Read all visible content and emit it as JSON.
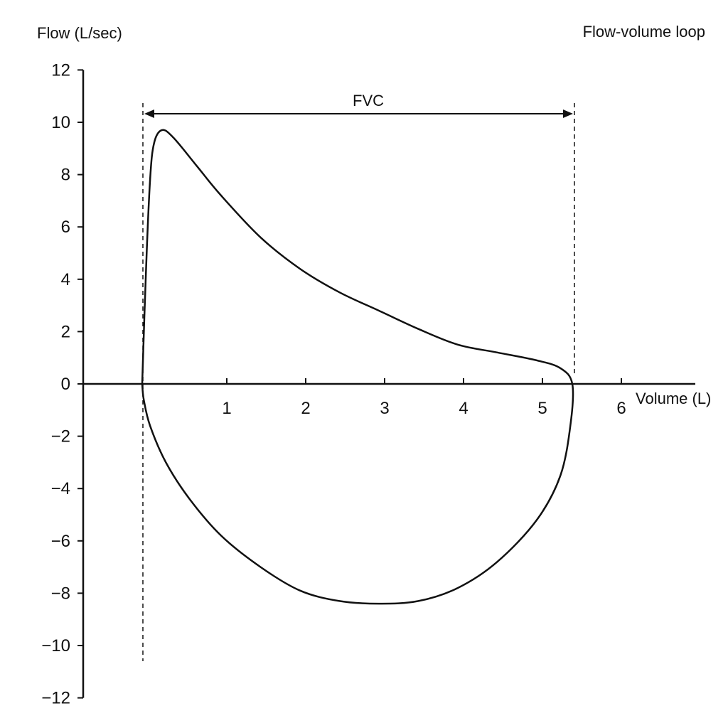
{
  "chart_data": {
    "type": "line",
    "title": "Flow-volume loop",
    "ylabel": "Flow (L/sec)",
    "xlabel": "Volume (L)",
    "annotation": "FVC",
    "xlim": [
      0,
      6
    ],
    "ylim": [
      -12,
      12
    ],
    "x_ticks": [
      "1",
      "2",
      "3",
      "4",
      "5",
      "6"
    ],
    "y_ticks": [
      "12",
      "10",
      "8",
      "6",
      "4",
      "2",
      "0",
      "−2",
      "−4",
      "−6",
      "−8",
      "−10",
      "−12"
    ],
    "fvc_range": [
      0,
      5.45
    ],
    "grid": false,
    "series": [
      {
        "values": [
          {
            "x": 0.0,
            "y": 0.0
          },
          {
            "x": 0.05,
            "y": 4.5
          },
          {
            "x": 0.1,
            "y": 7.8
          },
          {
            "x": 0.15,
            "y": 9.2
          },
          {
            "x": 0.25,
            "y": 9.7
          },
          {
            "x": 0.4,
            "y": 9.4
          },
          {
            "x": 0.7,
            "y": 8.3
          },
          {
            "x": 1.0,
            "y": 7.2
          },
          {
            "x": 1.5,
            "y": 5.6
          },
          {
            "x": 2.0,
            "y": 4.4
          },
          {
            "x": 2.5,
            "y": 3.5
          },
          {
            "x": 3.0,
            "y": 2.8
          },
          {
            "x": 3.5,
            "y": 2.1
          },
          {
            "x": 4.0,
            "y": 1.5
          },
          {
            "x": 4.5,
            "y": 1.2
          },
          {
            "x": 5.0,
            "y": 0.9
          },
          {
            "x": 5.3,
            "y": 0.6
          },
          {
            "x": 5.45,
            "y": 0.0
          },
          {
            "x": 5.43,
            "y": -1.5
          },
          {
            "x": 5.3,
            "y": -3.5
          },
          {
            "x": 5.0,
            "y": -5.2
          },
          {
            "x": 4.5,
            "y": -6.8
          },
          {
            "x": 4.0,
            "y": -7.8
          },
          {
            "x": 3.5,
            "y": -8.3
          },
          {
            "x": 3.0,
            "y": -8.4
          },
          {
            "x": 2.5,
            "y": -8.3
          },
          {
            "x": 2.0,
            "y": -7.9
          },
          {
            "x": 1.5,
            "y": -7.0
          },
          {
            "x": 1.0,
            "y": -5.8
          },
          {
            "x": 0.6,
            "y": -4.4
          },
          {
            "x": 0.3,
            "y": -3.0
          },
          {
            "x": 0.1,
            "y": -1.6
          },
          {
            "x": 0.02,
            "y": -0.6
          },
          {
            "x": 0.0,
            "y": 0.0
          }
        ]
      }
    ]
  }
}
